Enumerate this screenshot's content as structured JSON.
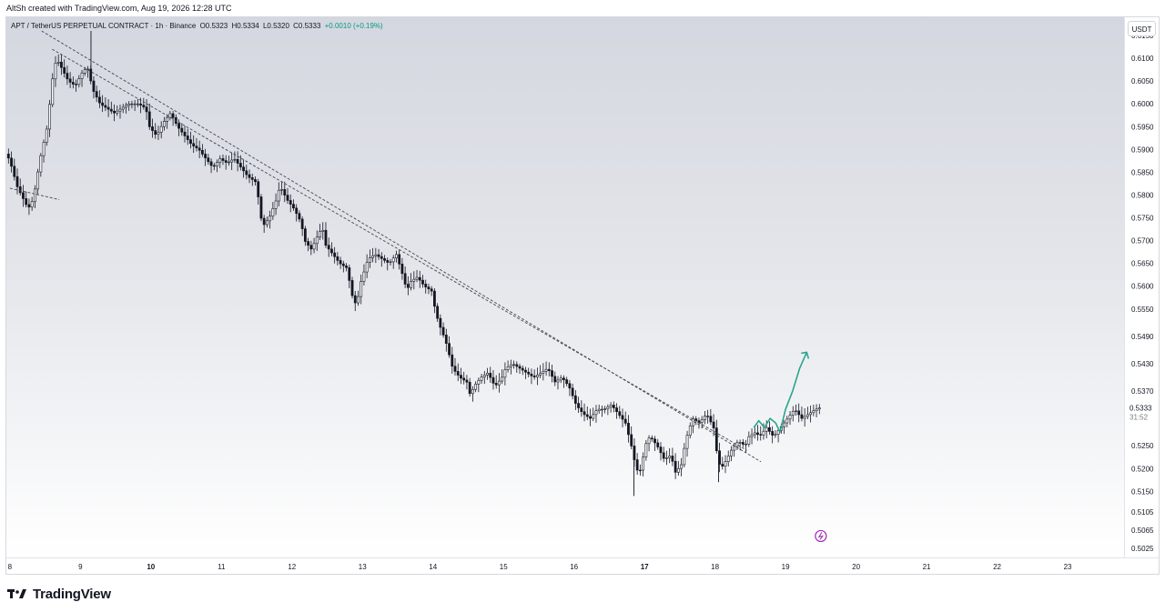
{
  "header": {
    "created_by": "AltSh created with TradingView.com, Aug 19, 2026 12:28 UTC"
  },
  "legend": {
    "symbol": "APT / TetherUS PERPETUAL CONTRACT · 1h · Binance",
    "open": "O0.5323",
    "high": "H0.5334",
    "low": "L0.5320",
    "close": "C0.5333",
    "change": "+0.0010 (+0.19%)",
    "change_color": "#089981"
  },
  "currency_button": "USDT",
  "last_price": {
    "value": "0.5333",
    "countdown": "31:52"
  },
  "footer": {
    "brand": "TradingView"
  },
  "colors": {
    "candles": "#131722",
    "trendline": "#434651",
    "projection": "#2aa58f",
    "flash_icon": "#9c27b0"
  },
  "chart_data": {
    "type": "candlestick",
    "interval": "1h",
    "x_unit": "day of month (August 2026)",
    "xlim": [
      7.95,
      23.8
    ],
    "ylim": [
      0.5005,
      0.619
    ],
    "y_ticks": [
      "0.6150",
      "0.6100",
      "0.6050",
      "0.6000",
      "0.5950",
      "0.5900",
      "0.5850",
      "0.5800",
      "0.5750",
      "0.5700",
      "0.5650",
      "0.5600",
      "0.5550",
      "0.5490",
      "0.5430",
      "0.5370",
      "0.5250",
      "0.5200",
      "0.5150",
      "0.5105",
      "0.5065",
      "0.5025"
    ],
    "x_ticks": [
      "8",
      "9",
      "10",
      "11",
      "12",
      "13",
      "14",
      "15",
      "16",
      "17",
      "18",
      "19",
      "20",
      "21",
      "22",
      "23"
    ],
    "bold_x_ticks": [
      "10",
      "17"
    ],
    "price_path": [
      [
        7.98,
        0.589
      ],
      [
        8.05,
        0.586
      ],
      [
        8.12,
        0.582
      ],
      [
        8.2,
        0.5795
      ],
      [
        8.28,
        0.577
      ],
      [
        8.35,
        0.579
      ],
      [
        8.45,
        0.588
      ],
      [
        8.55,
        0.595
      ],
      [
        8.62,
        0.605
      ],
      [
        8.68,
        0.61
      ],
      [
        8.75,
        0.608
      ],
      [
        8.85,
        0.605
      ],
      [
        8.95,
        0.604
      ],
      [
        9.05,
        0.607
      ],
      [
        9.12,
        0.608
      ],
      [
        9.2,
        0.603
      ],
      [
        9.3,
        0.6
      ],
      [
        9.4,
        0.599
      ],
      [
        9.5,
        0.598
      ],
      [
        9.6,
        0.599
      ],
      [
        9.7,
        0.6
      ],
      [
        9.85,
        0.6
      ],
      [
        9.95,
        0.599
      ],
      [
        10.0,
        0.595
      ],
      [
        10.1,
        0.593
      ],
      [
        10.2,
        0.596
      ],
      [
        10.3,
        0.598
      ],
      [
        10.4,
        0.595
      ],
      [
        10.5,
        0.593
      ],
      [
        10.6,
        0.591
      ],
      [
        10.7,
        0.59
      ],
      [
        10.8,
        0.588
      ],
      [
        10.9,
        0.586
      ],
      [
        11.0,
        0.588
      ],
      [
        11.1,
        0.587
      ],
      [
        11.2,
        0.588
      ],
      [
        11.3,
        0.586
      ],
      [
        11.4,
        0.584
      ],
      [
        11.5,
        0.583
      ],
      [
        11.55,
        0.579
      ],
      [
        11.6,
        0.573
      ],
      [
        11.7,
        0.575
      ],
      [
        11.8,
        0.579
      ],
      [
        11.85,
        0.582
      ],
      [
        11.95,
        0.579
      ],
      [
        12.05,
        0.577
      ],
      [
        12.15,
        0.574
      ],
      [
        12.2,
        0.57
      ],
      [
        12.3,
        0.568
      ],
      [
        12.35,
        0.57
      ],
      [
        12.45,
        0.573
      ],
      [
        12.5,
        0.569
      ],
      [
        12.6,
        0.567
      ],
      [
        12.7,
        0.565
      ],
      [
        12.8,
        0.564
      ],
      [
        12.9,
        0.556
      ],
      [
        12.95,
        0.557
      ],
      [
        13.0,
        0.561
      ],
      [
        13.1,
        0.566
      ],
      [
        13.2,
        0.567
      ],
      [
        13.3,
        0.566
      ],
      [
        13.4,
        0.565
      ],
      [
        13.5,
        0.567
      ],
      [
        13.6,
        0.562
      ],
      [
        13.65,
        0.559
      ],
      [
        13.7,
        0.561
      ],
      [
        13.8,
        0.562
      ],
      [
        13.9,
        0.56
      ],
      [
        14.0,
        0.559
      ],
      [
        14.05,
        0.555
      ],
      [
        14.1,
        0.552
      ],
      [
        14.2,
        0.548
      ],
      [
        14.3,
        0.542
      ],
      [
        14.4,
        0.54
      ],
      [
        14.5,
        0.539
      ],
      [
        14.55,
        0.536
      ],
      [
        14.6,
        0.538
      ],
      [
        14.7,
        0.54
      ],
      [
        14.8,
        0.541
      ],
      [
        14.9,
        0.538
      ],
      [
        15.0,
        0.54
      ],
      [
        15.05,
        0.542
      ],
      [
        15.15,
        0.543
      ],
      [
        15.25,
        0.542
      ],
      [
        15.35,
        0.541
      ],
      [
        15.45,
        0.54
      ],
      [
        15.55,
        0.541
      ],
      [
        15.65,
        0.542
      ],
      [
        15.75,
        0.539
      ],
      [
        15.85,
        0.54
      ],
      [
        15.95,
        0.538
      ],
      [
        16.05,
        0.534
      ],
      [
        16.15,
        0.532
      ],
      [
        16.25,
        0.531
      ],
      [
        16.35,
        0.533
      ],
      [
        16.45,
        0.533
      ],
      [
        16.55,
        0.534
      ],
      [
        16.65,
        0.532
      ],
      [
        16.75,
        0.53
      ],
      [
        16.8,
        0.527
      ],
      [
        16.85,
        0.524
      ],
      [
        16.9,
        0.52
      ],
      [
        16.95,
        0.519
      ],
      [
        17.05,
        0.526
      ],
      [
        17.1,
        0.527
      ],
      [
        17.2,
        0.525
      ],
      [
        17.3,
        0.522
      ],
      [
        17.4,
        0.523
      ],
      [
        17.45,
        0.519
      ],
      [
        17.55,
        0.521
      ],
      [
        17.6,
        0.526
      ],
      [
        17.7,
        0.531
      ],
      [
        17.8,
        0.53
      ],
      [
        17.9,
        0.532
      ],
      [
        18.0,
        0.529
      ],
      [
        18.05,
        0.523
      ],
      [
        18.1,
        0.52
      ],
      [
        18.15,
        0.521
      ],
      [
        18.25,
        0.524
      ],
      [
        18.35,
        0.526
      ],
      [
        18.45,
        0.525
      ],
      [
        18.5,
        0.527
      ],
      [
        18.6,
        0.528
      ],
      [
        18.65,
        0.527
      ],
      [
        18.75,
        0.529
      ],
      [
        18.85,
        0.527
      ],
      [
        18.95,
        0.529
      ],
      [
        19.05,
        0.531
      ],
      [
        19.15,
        0.533
      ],
      [
        19.25,
        0.531
      ],
      [
        19.35,
        0.532
      ],
      [
        19.45,
        0.533
      ],
      [
        19.5,
        0.5333
      ]
    ],
    "spikes": [
      [
        9.15,
        0.616
      ],
      [
        16.85,
        0.514
      ],
      [
        18.05,
        0.517
      ]
    ],
    "trendlines": [
      {
        "from": [
          8.45,
          0.616
        ],
        "to": [
          18.65,
          0.5215
        ],
        "style": "dashed"
      },
      {
        "from": [
          8.6,
          0.612
        ],
        "to": [
          18.45,
          0.524
        ],
        "style": "dashed"
      },
      {
        "from": [
          8.0,
          0.5815
        ],
        "to": [
          8.7,
          0.579
        ],
        "style": "dashed"
      }
    ],
    "projection_path": [
      [
        18.55,
        0.529
      ],
      [
        18.62,
        0.5305
      ],
      [
        18.7,
        0.529
      ],
      [
        18.78,
        0.531
      ],
      [
        18.86,
        0.53
      ],
      [
        18.92,
        0.528
      ],
      [
        19.0,
        0.533
      ],
      [
        19.1,
        0.537
      ],
      [
        19.2,
        0.542
      ],
      [
        19.3,
        0.5455
      ]
    ],
    "projection_arrow_tip": [
      19.3,
      0.5455
    ],
    "flash_marker": [
      19.5,
      0.5052
    ]
  }
}
